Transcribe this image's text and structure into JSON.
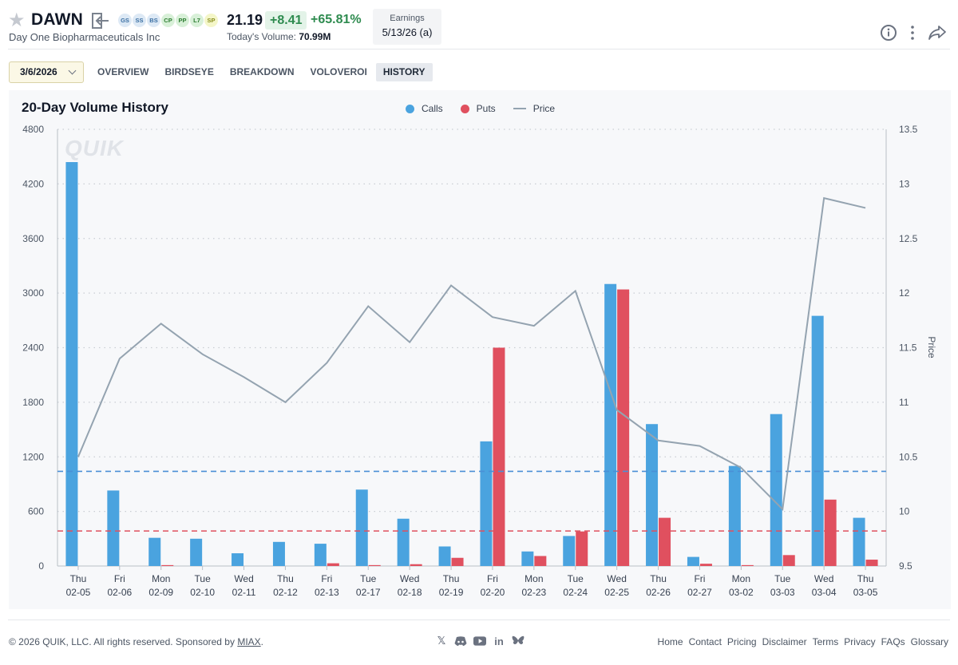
{
  "header": {
    "ticker": "DAWN",
    "company": "Day One Biopharmaceuticals Inc",
    "badges": [
      {
        "label": "GS",
        "bg": "#dde9f5",
        "fg": "#3b6fa3"
      },
      {
        "label": "SS",
        "bg": "#dde9f5",
        "fg": "#3b6fa3"
      },
      {
        "label": "BS",
        "bg": "#dde9f5",
        "fg": "#3b6fa3"
      },
      {
        "label": "CP",
        "bg": "#d8f0d8",
        "fg": "#2e7d32"
      },
      {
        "label": "PP",
        "bg": "#d8f0d8",
        "fg": "#2e7d32"
      },
      {
        "label": "L7",
        "bg": "#d8f0d8",
        "fg": "#2e7d32"
      },
      {
        "label": "SP",
        "bg": "#f4f6c8",
        "fg": "#8a8f1f"
      }
    ],
    "price": "21.19",
    "change": "+8.41",
    "change_pct": "+65.81%",
    "volume_label": "Today's Volume:",
    "volume_value": "70.99M",
    "earnings_label": "Earnings",
    "earnings_value": "5/13/26 (a)"
  },
  "nav": {
    "date": "3/6/2026",
    "tabs": [
      "OVERVIEW",
      "BIRDSEYE",
      "BREAKDOWN",
      "VOLOVEROI",
      "HISTORY"
    ],
    "active_tab": "HISTORY"
  },
  "watermark": "QUIK",
  "chart_data": {
    "type": "bar",
    "title": "20-Day Volume History",
    "legend_position": "top-center",
    "categories": [
      [
        "Thu",
        "02-05"
      ],
      [
        "Fri",
        "02-06"
      ],
      [
        "Mon",
        "02-09"
      ],
      [
        "Tue",
        "02-10"
      ],
      [
        "Wed",
        "02-11"
      ],
      [
        "Thu",
        "02-12"
      ],
      [
        "Fri",
        "02-13"
      ],
      [
        "Tue",
        "02-17"
      ],
      [
        "Wed",
        "02-18"
      ],
      [
        "Thu",
        "02-19"
      ],
      [
        "Fri",
        "02-20"
      ],
      [
        "Mon",
        "02-23"
      ],
      [
        "Tue",
        "02-24"
      ],
      [
        "Wed",
        "02-25"
      ],
      [
        "Thu",
        "02-26"
      ],
      [
        "Fri",
        "02-27"
      ],
      [
        "Mon",
        "03-02"
      ],
      [
        "Tue",
        "03-03"
      ],
      [
        "Wed",
        "03-04"
      ],
      [
        "Thu",
        "03-05"
      ]
    ],
    "series": [
      {
        "name": "Calls",
        "type": "bar",
        "color": "#4aa3df",
        "values": [
          4440,
          830,
          310,
          300,
          140,
          265,
          245,
          840,
          520,
          215,
          1370,
          160,
          330,
          3100,
          1560,
          100,
          1100,
          1670,
          2750,
          530
        ]
      },
      {
        "name": "Puts",
        "type": "bar",
        "color": "#e0505f",
        "values": [
          0,
          0,
          10,
          0,
          0,
          0,
          30,
          10,
          20,
          90,
          2400,
          110,
          380,
          3040,
          530,
          25,
          10,
          120,
          730,
          70
        ]
      },
      {
        "name": "Price",
        "type": "line",
        "color": "#94a3b0",
        "values": [
          10.5,
          11.4,
          11.72,
          11.44,
          11.23,
          11.0,
          11.36,
          11.88,
          11.55,
          12.07,
          11.78,
          11.7,
          12.02,
          10.93,
          10.65,
          10.6,
          10.4,
          10.02,
          12.87,
          12.78
        ]
      }
    ],
    "reference_lines": [
      {
        "series": "Calls",
        "value": 1040,
        "color": "#4a8fd6"
      },
      {
        "series": "Puts",
        "value": 385,
        "color": "#e0505f"
      }
    ],
    "ylim": [
      0,
      4800
    ],
    "yticks": [
      0,
      600,
      1200,
      1800,
      2400,
      3000,
      3600,
      4200,
      4800
    ],
    "y2lim": [
      9.5,
      13.5
    ],
    "y2ticks": [
      "9.5",
      "10",
      "10.5",
      "11",
      "11.5",
      "12",
      "12.5",
      "13",
      "13.5"
    ],
    "y2label": "Price",
    "grid": "horizontal-dotted"
  },
  "footer": {
    "copyright": "© 2026 QUIK, LLC. All rights reserved.  Sponsored by",
    "sponsor": "MIAX",
    "social": [
      "x-icon",
      "discord-icon",
      "youtube-icon",
      "linkedin-icon",
      "bluesky-icon"
    ],
    "links": [
      "Home",
      "Contact",
      "Pricing",
      "Disclaimer",
      "Terms",
      "Privacy",
      "FAQs",
      "Glossary"
    ]
  }
}
